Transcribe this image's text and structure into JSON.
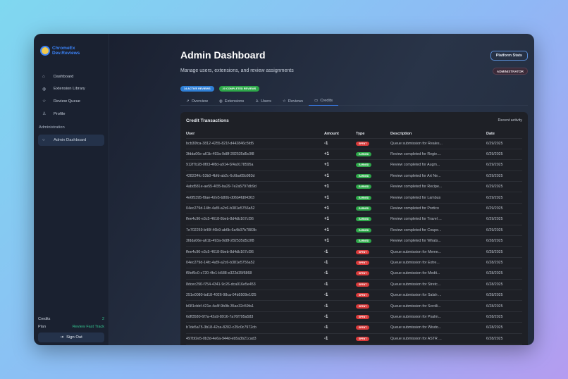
{
  "sidebar": {
    "logo_line1": "ChromeEx",
    "logo_line2": "Dev.Reviews",
    "items": [
      {
        "label": "Dashboard",
        "icon": "home-icon"
      },
      {
        "label": "Extension Library",
        "icon": "globe-icon"
      },
      {
        "label": "Review Queue",
        "icon": "star-icon"
      },
      {
        "label": "Profile",
        "icon": "user-icon"
      }
    ],
    "section": "Administration",
    "admin_item": "Admin Dashboard",
    "credits_label": "Credits",
    "credits_value": "2",
    "plan_label": "Plan",
    "plan_value": "Review Fast Track",
    "sign_out": "Sign Out"
  },
  "header": {
    "title": "Admin Dashboard",
    "subtitle": "Manage users, extensions, and review assignments",
    "platform_stats": "Platform Stats",
    "role_badge": "ADMINISTRATOR"
  },
  "pills": {
    "active": "14 ACTIVE REVIEWS",
    "completed": "20 COMPLETED REVIEWS",
    "active_color": "#2f7fd6",
    "completed_color": "#2ea84a"
  },
  "tabs": [
    {
      "label": "Overview",
      "icon": "trend-icon"
    },
    {
      "label": "Extensions",
      "icon": "globe-icon"
    },
    {
      "label": "Users",
      "icon": "users-icon"
    },
    {
      "label": "Reviews",
      "icon": "star-icon"
    },
    {
      "label": "Credits",
      "icon": "card-icon",
      "active": true
    }
  ],
  "card": {
    "title": "Credit Transactions",
    "meta": "Recent activity",
    "columns": [
      "User",
      "Amount",
      "Type",
      "Description",
      "Date"
    ],
    "rows": [
      [
        "bcb30fca-3812-4255-821f-d442846c5fd5",
        "-1",
        "SPENT",
        "Queue submission for Reales...",
        "6/29/2025"
      ],
      [
        "3fdda06e-a61b-493a-9d8f-282535d5c0f8",
        "+1",
        "EARNED",
        "Review completed for Regie....",
        "6/29/2025"
      ],
      [
        "912f7b28-0f03-4f8d-a914-f24a0178595a",
        "+1",
        "EARNED",
        "Review completed for Augm...",
        "6/29/2025"
      ],
      [
        "428234fc-53b0-4bfd-ab2c-6c6ba65b983d",
        "+1",
        "EARNED",
        "Review completed for Art Ne...",
        "6/29/2025"
      ],
      [
        "4abd581e-ae55-4f35-ba29-7e2a5797db9d",
        "+1",
        "EARNED",
        "Review completed for Recipe...",
        "6/29/2025"
      ],
      [
        "4e6f5395-f9ae-42e5-b80b-d06b4fd04363",
        "+1",
        "EARNED",
        "Review completed for Lambus",
        "6/29/2025"
      ],
      [
        "04ec279d-14fc-4a5f-a2c6-b381e5756a52",
        "+1",
        "EARNED",
        "Review completed for Portico",
        "6/29/2025"
      ],
      [
        "ffee4c96-e3c5-4618-8beb-8d4db167cf36",
        "+1",
        "EARNED",
        "Review completed for Travel ...",
        "6/29/2025"
      ],
      [
        "7e702259-b40f-46b9-ab6b-6a4b37b7883b",
        "+1",
        "EARNED",
        "Review completed for Coupe...",
        "6/29/2025"
      ],
      [
        "3fdda06e-a61b-493a-9d8f-282535d5c0f8",
        "+1",
        "EARNED",
        "Review completed for Whats...",
        "6/28/2025"
      ],
      [
        "ffee4c96-e3c5-4618-8beb-8d4db167cf36",
        "-1",
        "SPENT",
        "Queue submission for Meme...",
        "6/28/2025"
      ],
      [
        "04ec279d-14fc-4a5f-a2c6-b381e5756a52",
        "-1",
        "SPENT",
        "Queue submission for Extre...",
        "6/28/2025"
      ],
      [
        "f5fef5c0-c720-4fe1-b588-e322d35f6868",
        "-1",
        "SPENT",
        "Queue submission for Medit...",
        "6/28/2025"
      ],
      [
        "8dcec290-f754-4341-9c26-dca016e5e453",
        "-1",
        "SPENT",
        "Queue submission for Stretc...",
        "6/28/2025"
      ],
      [
        "251e0080-bd18-4026-98ca-04b5509e1f25",
        "-1",
        "SPENT",
        "Queue submission for Salah ...",
        "6/28/2025"
      ],
      [
        "b081cbbf-421e-4a4f-9b9b-35ac32c59fa1",
        "-1",
        "SPENT",
        "Queue submission for Scrolli...",
        "6/28/2025"
      ],
      [
        "6dff3580-6f7a-42a9-8916-7a76f795a583",
        "-1",
        "SPENT",
        "Queue submission for Psalm...",
        "6/28/2025"
      ],
      [
        "b7de5a75-3b18-42ca-8202-c25c0c7972cb",
        "-1",
        "SPENT",
        "Queue submission for Wisdo...",
        "6/28/2025"
      ],
      [
        "497bf2e5-0b3d-4e6a-944d-eb5a3b21cad3",
        "-1",
        "SPENT",
        "Queue submission for ASTR ...",
        "6/28/2025"
      ]
    ],
    "type_colors": {
      "SPENT": "#d93a3a",
      "EARNED": "#2ea84a"
    }
  }
}
